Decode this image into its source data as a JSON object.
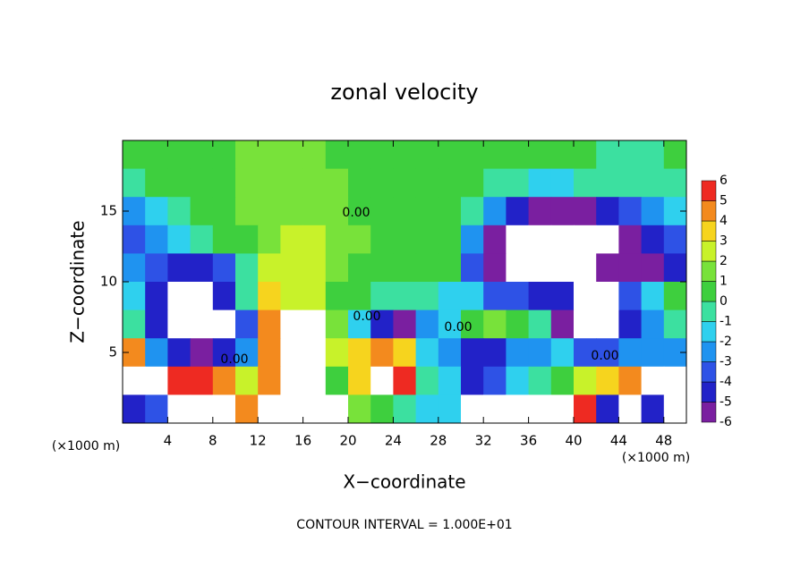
{
  "chart_data": {
    "type": "heatmap",
    "title": "zonal velocity",
    "xlabel": "X−coordinate",
    "ylabel": "Z−coordinate",
    "x_unit_label": "(×1000 m)",
    "footer": "CONTOUR INTERVAL = 1.000E+01",
    "contour_labels": [
      "0.00",
      "0.00",
      "0.00",
      "0.00",
      "0.00"
    ],
    "xlim": [
      0,
      50
    ],
    "ylim": [
      0,
      20
    ],
    "xticks": [
      4,
      8,
      12,
      16,
      20,
      24,
      28,
      32,
      36,
      40,
      44,
      48
    ],
    "yticks": [
      5,
      10,
      15
    ],
    "x": [
      1,
      3,
      5,
      7,
      9,
      11,
      13,
      15,
      17,
      19,
      21,
      23,
      25,
      27,
      29,
      31,
      33,
      35,
      37,
      39,
      41,
      43,
      45,
      47,
      49
    ],
    "y": [
      19,
      17,
      15,
      13,
      11,
      9,
      7,
      5,
      3,
      1
    ],
    "values": [
      [
        1,
        1,
        1,
        1,
        1,
        1.5,
        1.5,
        1.5,
        1.5,
        1,
        1,
        1,
        0.5,
        0.5,
        0.5,
        0.5,
        0.5,
        0.5,
        0.5,
        0.5,
        0.5,
        0,
        0,
        0,
        0.5
      ],
      [
        0,
        0.5,
        1,
        1,
        1,
        1.5,
        1.5,
        1.5,
        1.5,
        1.5,
        1,
        1,
        1,
        0.5,
        0.5,
        0.5,
        0,
        -0.5,
        -1,
        -1,
        -0.5,
        0,
        0,
        0,
        0
      ],
      [
        -2,
        -1,
        0,
        0.5,
        1,
        1.5,
        1.5,
        2,
        2,
        1.5,
        1,
        1,
        0.5,
        0.5,
        0.5,
        0,
        -2,
        -4,
        -5,
        -5,
        -5,
        -4,
        -3,
        -2,
        -1
      ],
      [
        -3,
        -2,
        -1,
        0,
        0.5,
        1,
        2,
        2.5,
        2.5,
        2,
        1.5,
        1,
        0.5,
        0.5,
        0.5,
        -2,
        -5,
        -8,
        -8,
        -8,
        -8,
        -8,
        -5,
        -4,
        -3
      ],
      [
        -2,
        -3,
        -4,
        -4,
        -3,
        0,
        3,
        3,
        3,
        2,
        1,
        0.5,
        0.5,
        0.5,
        0.5,
        -3,
        -5,
        -8,
        -8,
        -8,
        -8,
        -5,
        -5,
        -5,
        -4
      ],
      [
        -1,
        -4,
        -8,
        -8,
        -4,
        0,
        4,
        3,
        3,
        1,
        0.5,
        0,
        0,
        0,
        -1,
        -1,
        -3,
        -3,
        -4,
        -4,
        -8,
        -8,
        -3,
        -1,
        0.5
      ],
      [
        0,
        -4,
        -8,
        -8,
        -8,
        -3,
        5,
        8,
        8,
        2,
        -1,
        -4,
        -5,
        -2,
        -1,
        1,
        2,
        1,
        0,
        -5,
        -8,
        -8,
        -4,
        -2,
        0
      ],
      [
        5,
        -2,
        -4,
        -5,
        -4,
        -2,
        5,
        8,
        8,
        3,
        4,
        5,
        4,
        -1,
        -2,
        -4,
        -4,
        -2,
        -2,
        -1,
        -3,
        -3,
        -2,
        -2,
        -2
      ],
      [
        8,
        8,
        6,
        6,
        5,
        3,
        5,
        8,
        8,
        1,
        4,
        7,
        6,
        0,
        -1,
        -4,
        -3,
        -1,
        0,
        1,
        3,
        4,
        5,
        8,
        8
      ],
      [
        -4,
        -3,
        8,
        8,
        8,
        5,
        8,
        8,
        8,
        8,
        2,
        1,
        0,
        -1,
        -1,
        8,
        8,
        8,
        8,
        8,
        6,
        -4,
        8,
        -4,
        8
      ]
    ],
    "levels": [
      -6,
      -5,
      -4,
      -3,
      -2,
      -1,
      0,
      1,
      2,
      3,
      4,
      5,
      6
    ],
    "colors": [
      "#7a1fa0",
      "#2222c8",
      "#2e52e6",
      "#1f93f0",
      "#2fd0ee",
      "#3ce0a0",
      "#3ecf3e",
      "#78e23a",
      "#c8f22a",
      "#f6d41e",
      "#f38a1e",
      "#ee2a22"
    ],
    "out_of_range_color": "#ffffff"
  }
}
